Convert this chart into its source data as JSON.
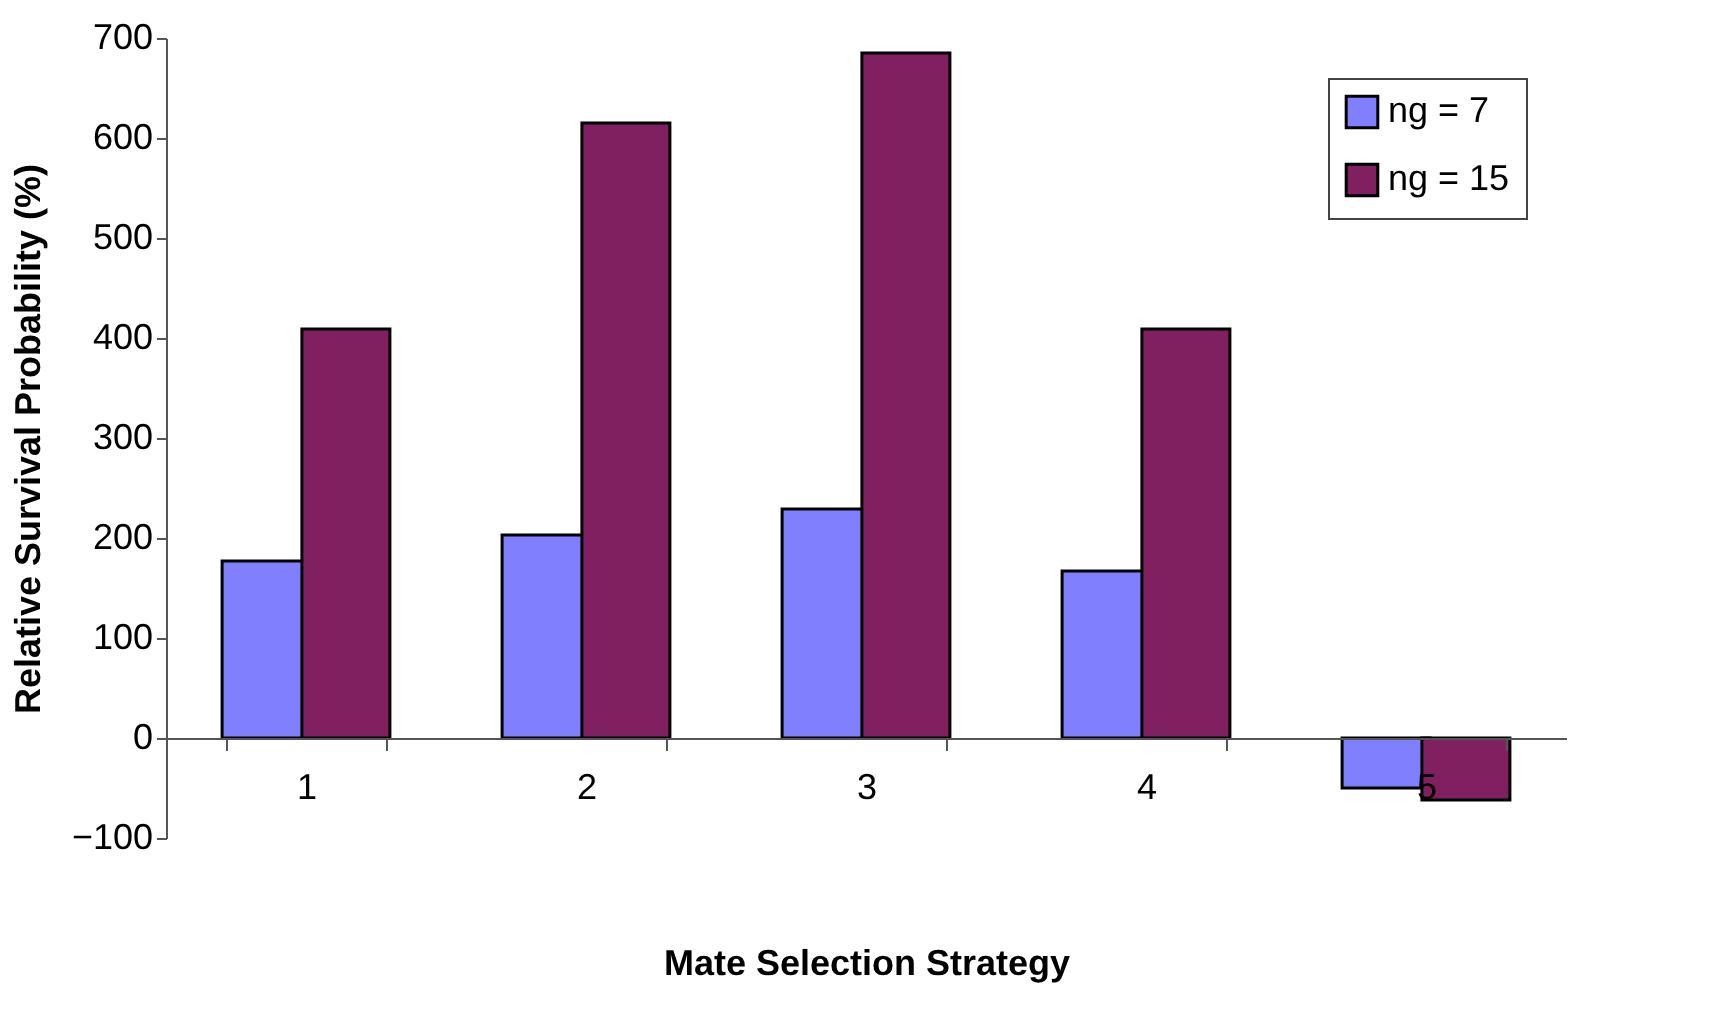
{
  "chart_data": {
    "type": "bar",
    "xlabel": "Mate Selection Strategy",
    "ylabel": "Relative Survival Probability (%)",
    "categories": [
      "1",
      "2",
      "3",
      "4",
      "5"
    ],
    "series": [
      {
        "name": "ng = 7",
        "color": "#8080ff",
        "values": [
          177,
          203,
          229,
          167,
          -50
        ]
      },
      {
        "name": "ng = 15",
        "color": "#802060",
        "values": [
          409,
          615,
          685,
          409,
          -62
        ]
      }
    ],
    "ylim": [
      -100,
      700
    ],
    "yticks": [
      -100,
      0,
      100,
      200,
      300,
      400,
      500,
      600,
      700
    ],
    "grid": false,
    "legend": "top right"
  }
}
